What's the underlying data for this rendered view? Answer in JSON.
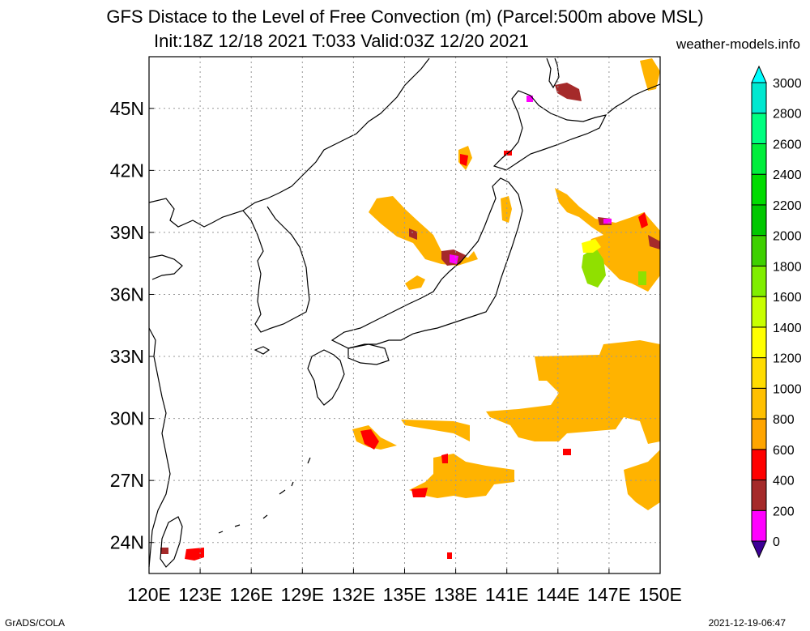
{
  "title": {
    "line1": "GFS Distace to the Level of Free Convection (m) (Parcel:500m above MSL)",
    "line2": "Init:18Z 12/18 2021 T:033 Valid:03Z 12/20 2021",
    "site": "weather-models.info"
  },
  "footer": {
    "left": "GrADS/COLA",
    "right": "2021-12-19-06:47"
  },
  "map": {
    "lon_range": [
      120,
      150
    ],
    "lat_range": [
      22.5,
      47.5
    ],
    "lon_ticks": [
      "120E",
      "123E",
      "126E",
      "129E",
      "132E",
      "135E",
      "138E",
      "141E",
      "144E",
      "147E",
      "150E"
    ],
    "lat_ticks": [
      "24N",
      "27N",
      "30N",
      "33N",
      "36N",
      "39N",
      "42N",
      "45N"
    ],
    "grid": true,
    "coastlines": true
  },
  "colorbar": {
    "levels": [
      "0",
      "200",
      "400",
      "600",
      "800",
      "1000",
      "1200",
      "1400",
      "1600",
      "1800",
      "2000",
      "2200",
      "2400",
      "2600",
      "2800",
      "3000"
    ],
    "colors": [
      "#3c0096",
      "#ff00ff",
      "#a52a2a",
      "#ff0000",
      "#ffa500",
      "#ffc000",
      "#ffdc00",
      "#ffff00",
      "#c8ff00",
      "#80ee00",
      "#3ed000",
      "#00c800",
      "#00dc00",
      "#00ee3c",
      "#00ff80",
      "#00e8d0",
      "#00ffff"
    ]
  }
}
